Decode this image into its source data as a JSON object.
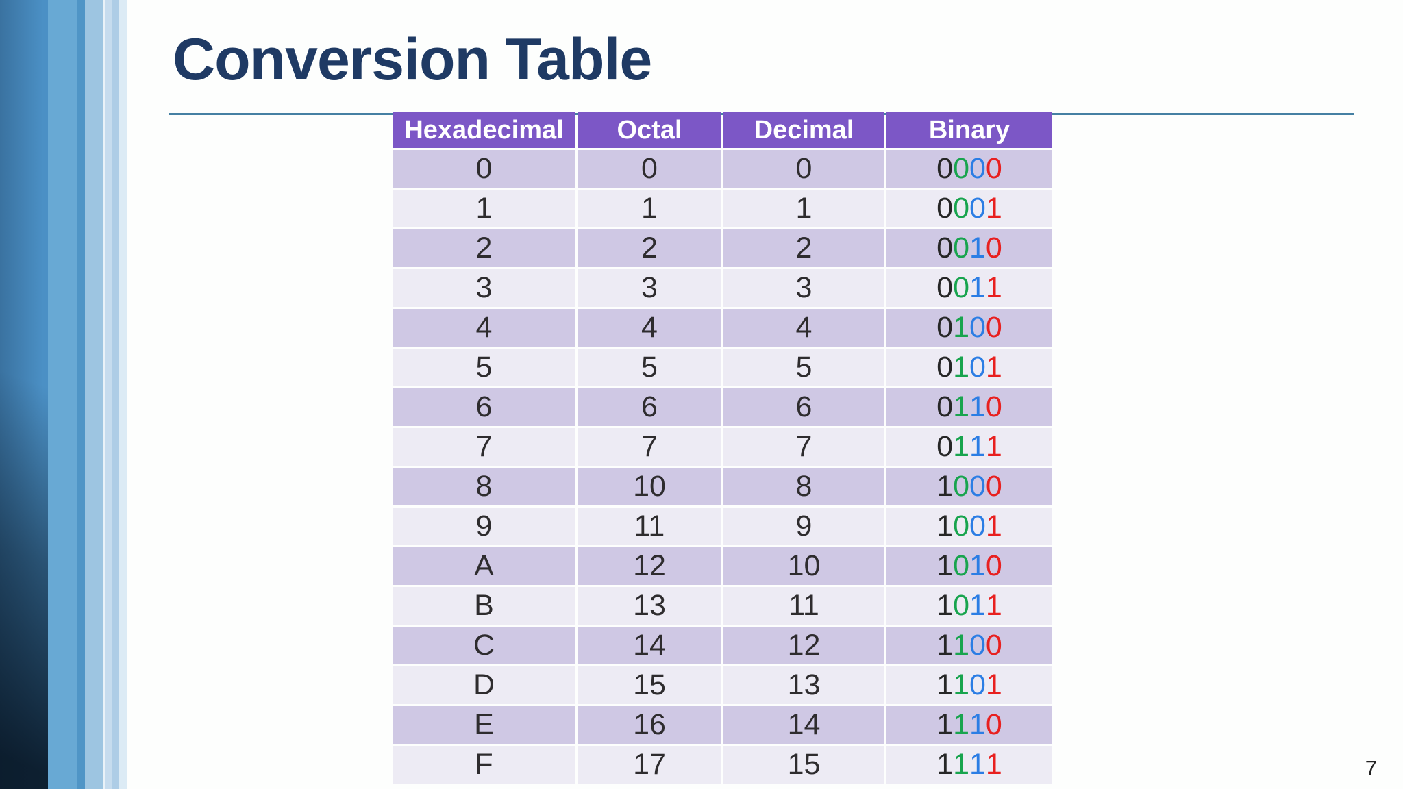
{
  "slide": {
    "title": "Conversion Table",
    "page_number": "7"
  },
  "table": {
    "headers": [
      "Hexadecimal",
      "Octal",
      "Decimal",
      "Binary"
    ],
    "rows": [
      {
        "hex": "0",
        "octal": "0",
        "decimal": "0",
        "binary": "0000"
      },
      {
        "hex": "1",
        "octal": "1",
        "decimal": "1",
        "binary": "0001"
      },
      {
        "hex": "2",
        "octal": "2",
        "decimal": "2",
        "binary": "0010"
      },
      {
        "hex": "3",
        "octal": "3",
        "decimal": "3",
        "binary": "0011"
      },
      {
        "hex": "4",
        "octal": "4",
        "decimal": "4",
        "binary": "0100"
      },
      {
        "hex": "5",
        "octal": "5",
        "decimal": "5",
        "binary": "0101"
      },
      {
        "hex": "6",
        "octal": "6",
        "decimal": "6",
        "binary": "0110"
      },
      {
        "hex": "7",
        "octal": "7",
        "decimal": "7",
        "binary": "0111"
      },
      {
        "hex": "8",
        "octal": "10",
        "decimal": "8",
        "binary": "1000"
      },
      {
        "hex": "9",
        "octal": "11",
        "decimal": "9",
        "binary": "1001"
      },
      {
        "hex": "A",
        "octal": "12",
        "decimal": "10",
        "binary": "1010"
      },
      {
        "hex": "B",
        "octal": "13",
        "decimal": "11",
        "binary": "1011"
      },
      {
        "hex": "C",
        "octal": "14",
        "decimal": "12",
        "binary": "1100"
      },
      {
        "hex": "D",
        "octal": "15",
        "decimal": "13",
        "binary": "1101"
      },
      {
        "hex": "E",
        "octal": "16",
        "decimal": "14",
        "binary": "1110"
      },
      {
        "hex": "F",
        "octal": "17",
        "decimal": "15",
        "binary": "1111"
      }
    ]
  },
  "colors": {
    "background": "#fdfefd",
    "title_text": "#1f3a64",
    "rule_line": "#4580a3",
    "header_bg": "#7c57c6",
    "header_text": "#ffffff",
    "row_dark_bg": "#cfc8e4",
    "row_light_bg": "#edebf4",
    "cell_text": "#2e2c2e",
    "binary_digit_1": "#262626",
    "binary_digit_2": "#18a44e",
    "binary_digit_3": "#2b7de4",
    "binary_digit_4": "#e8201f",
    "page_number_text": "#222222",
    "stripe_band_left": "#3a72a0",
    "stripe_band_right": "#4b90c5",
    "stripe_medium": "#68a9d4",
    "stripe_medium_dark": "#4f95c6",
    "stripe_light": "#9dc5e1",
    "stripe_hairline": "#e9f2f8",
    "stripe_pale": "#c6dcee",
    "stripe_pale2": "#aecde6",
    "stripe_palest": "#dcebf5"
  }
}
